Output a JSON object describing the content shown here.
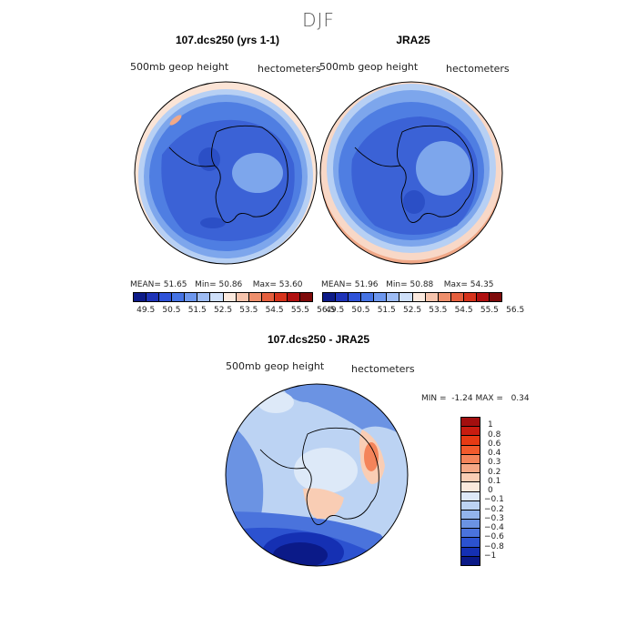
{
  "season_title": "DJF",
  "panels": [
    {
      "title": "107.dcs250 (yrs 1-1)",
      "field_label": "500mb  geop height",
      "units_label": "hectometers",
      "stats": {
        "mean_label": "MEAN=",
        "mean": "51.65",
        "min_label": "Min=",
        "min": "50.86",
        "max_label": "Max=",
        "max": "53.60"
      }
    },
    {
      "title": "JRA25",
      "field_label": "500mb  geop height",
      "units_label": "hectometers",
      "stats": {
        "mean_label": "MEAN=",
        "mean": "51.96",
        "min_label": "Min=",
        "min": "50.88",
        "max_label": "Max=",
        "max": "54.35"
      }
    }
  ],
  "abs_colorbar": {
    "ticks": [
      "49.5",
      "50.5",
      "51.5",
      "52.5",
      "53.5",
      "54.5",
      "55.5",
      "56.5"
    ],
    "colors": [
      "#0d1b88",
      "#1e33b8",
      "#2e52d8",
      "#4573e4",
      "#6d97ee",
      "#9ebcf4",
      "#cfe0fa",
      "#fbe9de",
      "#f7c4ad",
      "#ee8f6c",
      "#e55f3e",
      "#d6331c",
      "#b01010",
      "#7e0a0a"
    ]
  },
  "diff_panel": {
    "title": "107.dcs250 - JRA25",
    "field_label": "500mb  geop height",
    "units_label": "hectometers",
    "min_label": "MIN =",
    "min": "-1.24",
    "max_label": "MAX =",
    "max": "0.34"
  },
  "diff_colorbar": {
    "ticks": [
      "1",
      "0.8",
      "0.6",
      "0.4",
      "0.3",
      "0.2",
      "0.1",
      "0",
      "-0.1",
      "-0.2",
      "-0.3",
      "-0.4",
      "-0.6",
      "-0.8",
      "-1"
    ],
    "colors": [
      "#a30f0f",
      "#c81c10",
      "#e63a14",
      "#f25a2c",
      "#f4845a",
      "#f5a886",
      "#f9cdb4",
      "#fbe9dc",
      "#dde9f8",
      "#bcd3f3",
      "#92b4ec",
      "#6b93e3",
      "#4a73dc",
      "#2c52d0",
      "#1530b3",
      "#0b1a88"
    ]
  },
  "map_colors": {
    "deep_blue": "#3b62d6",
    "mid_blue": "#4f7ee2",
    "light_blue": "#7da6ec",
    "pale_blue": "#b7d0f4",
    "pale_salmon": "#f8d8c7",
    "salmon": "#f0a888",
    "navy": "#10228a",
    "coast": "#000000"
  }
}
